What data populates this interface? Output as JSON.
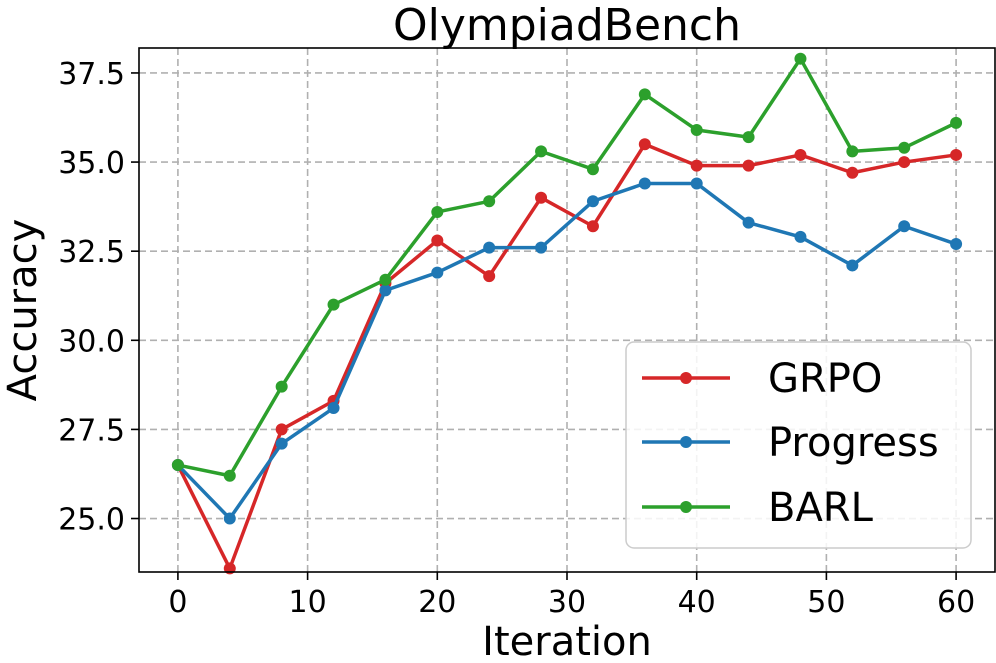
{
  "chart_data": {
    "type": "line",
    "title": "OlympiadBench",
    "xlabel": "Iteration",
    "ylabel": "Accuracy",
    "x": [
      0,
      4,
      8,
      12,
      16,
      20,
      24,
      28,
      32,
      36,
      40,
      44,
      48,
      52,
      56,
      60
    ],
    "xlim": [
      -3,
      63
    ],
    "ylim": [
      23.5,
      38.2
    ],
    "xticks": [
      0,
      10,
      20,
      30,
      40,
      50,
      60
    ],
    "xtick_labels": [
      "0",
      "10",
      "20",
      "30",
      "40",
      "50",
      "60"
    ],
    "yticks": [
      25.0,
      27.5,
      30.0,
      32.5,
      35.0,
      37.5
    ],
    "ytick_labels": [
      "25.0",
      "27.5",
      "30.0",
      "32.5",
      "35.0",
      "37.5"
    ],
    "grid": true,
    "legend_position": "lower right",
    "series": [
      {
        "name": "GRPO",
        "color": "#d62728",
        "values": [
          26.5,
          23.6,
          27.5,
          28.3,
          31.6,
          32.8,
          31.8,
          34.0,
          33.2,
          35.5,
          34.9,
          34.9,
          35.2,
          34.7,
          35.0,
          35.2
        ]
      },
      {
        "name": "Progress",
        "color": "#1f77b4",
        "values": [
          26.5,
          25.0,
          27.1,
          28.1,
          31.4,
          31.9,
          32.6,
          32.6,
          33.9,
          34.4,
          34.4,
          33.3,
          32.9,
          32.1,
          33.2,
          32.7
        ]
      },
      {
        "name": "BARL",
        "color": "#2ca02c",
        "values": [
          26.5,
          26.2,
          28.7,
          31.0,
          31.7,
          33.6,
          33.9,
          35.3,
          34.8,
          36.9,
          35.9,
          35.7,
          37.9,
          35.3,
          35.4,
          36.1
        ]
      }
    ]
  }
}
